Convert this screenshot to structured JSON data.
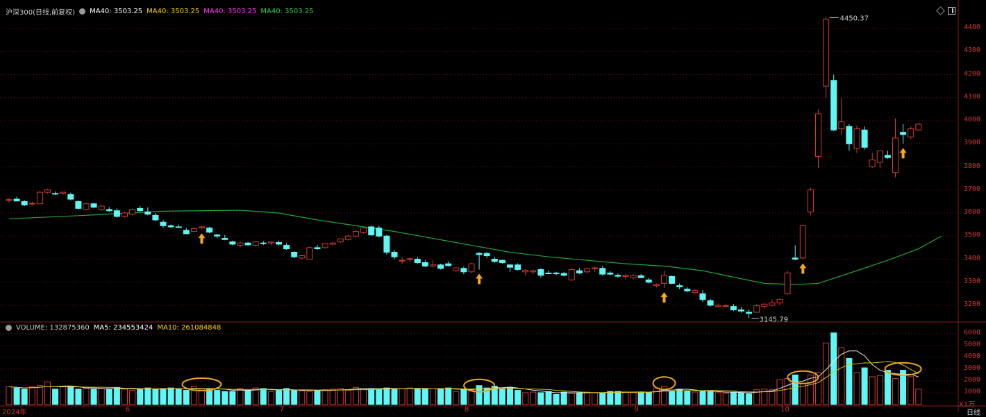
{
  "header": {
    "title": "沪深300(日线,前复权)",
    "ma_items": [
      {
        "label": "MA40: 3503.25",
        "color": "#ffffff"
      },
      {
        "label": "MA40: 3503.25",
        "color": "#ffd400"
      },
      {
        "label": "MA40: 3503.25",
        "color": "#ff3cff"
      },
      {
        "label": "MA40: 3503.25",
        "color": "#2ed14a"
      }
    ]
  },
  "volume_header": {
    "volume": "VOLUME: 132875360",
    "ma5": "MA5: 234553424",
    "ma10": "MA10: 261084848"
  },
  "price_axis": [
    "4400",
    "4300",
    "4200",
    "4100",
    "4000",
    "3900",
    "3800",
    "3700",
    "3600",
    "3500",
    "3400",
    "3300",
    "3200"
  ],
  "volume_axis": [
    "6000",
    "5000",
    "4000",
    "3000",
    "2000",
    "1000"
  ],
  "volume_unit": "X1万",
  "period": "日线",
  "x_axis": [
    {
      "label": "2024年",
      "index": 0
    },
    {
      "label": "6",
      "index": 16
    },
    {
      "label": "7",
      "index": 36
    },
    {
      "label": "8",
      "index": 60
    },
    {
      "label": "9",
      "index": 82
    },
    {
      "label": "10",
      "index": 101
    }
  ],
  "annotations": {
    "high": "4450.37",
    "low": "3145.79"
  },
  "colors": {
    "up": "#d23c32",
    "down": "#5ff6f6",
    "ma40": "#23a833",
    "grid": "#6b1515",
    "arrow": "#f5a81a",
    "circle": "#e8a722"
  },
  "chart_data": {
    "type": "candlestick",
    "candles": [
      [
        3655,
        3665,
        3645,
        3658
      ],
      [
        3660,
        3670,
        3650,
        3652
      ],
      [
        3650,
        3655,
        3630,
        3635
      ],
      [
        3640,
        3648,
        3632,
        3642
      ],
      [
        3640,
        3695,
        3638,
        3690
      ],
      [
        3690,
        3705,
        3685,
        3700
      ],
      [
        3685,
        3693,
        3678,
        3682
      ],
      [
        3685,
        3692,
        3678,
        3690
      ],
      [
        3680,
        3688,
        3655,
        3660
      ],
      [
        3650,
        3655,
        3615,
        3620
      ],
      [
        3615,
        3645,
        3612,
        3640
      ],
      [
        3640,
        3645,
        3620,
        3625
      ],
      [
        3615,
        3635,
        3610,
        3630
      ],
      [
        3615,
        3625,
        3605,
        3610
      ],
      [
        3610,
        3620,
        3580,
        3585
      ],
      [
        3585,
        3605,
        3580,
        3600
      ],
      [
        3595,
        3620,
        3590,
        3615
      ],
      [
        3620,
        3630,
        3605,
        3610
      ],
      [
        3605,
        3625,
        3590,
        3595
      ],
      [
        3590,
        3600,
        3565,
        3570
      ],
      [
        3560,
        3570,
        3535,
        3545
      ],
      [
        3545,
        3550,
        3535,
        3540
      ],
      [
        3540,
        3550,
        3535,
        3538
      ],
      [
        3525,
        3535,
        3508,
        3510
      ],
      [
        3520,
        3535,
        3518,
        3532
      ],
      [
        3535,
        3545,
        3530,
        3540
      ],
      [
        3535,
        3540,
        3512,
        3517
      ],
      [
        3505,
        3510,
        3490,
        3500
      ],
      [
        3490,
        3505,
        3482,
        3485
      ],
      [
        3475,
        3480,
        3460,
        3465
      ],
      [
        3460,
        3475,
        3452,
        3470
      ],
      [
        3470,
        3475,
        3458,
        3462
      ],
      [
        3460,
        3480,
        3455,
        3475
      ],
      [
        3470,
        3478,
        3462,
        3467
      ],
      [
        3470,
        3478,
        3460,
        3474
      ],
      [
        3472,
        3480,
        3460,
        3465
      ],
      [
        3460,
        3470,
        3440,
        3445
      ],
      [
        3430,
        3435,
        3405,
        3410
      ],
      [
        3405,
        3418,
        3398,
        3415
      ],
      [
        3400,
        3455,
        3398,
        3450
      ],
      [
        3450,
        3462,
        3440,
        3445
      ],
      [
        3450,
        3470,
        3446,
        3468
      ],
      [
        3465,
        3475,
        3460,
        3470
      ],
      [
        3475,
        3490,
        3470,
        3488
      ],
      [
        3485,
        3505,
        3480,
        3500
      ],
      [
        3500,
        3525,
        3495,
        3520
      ],
      [
        3515,
        3540,
        3510,
        3535
      ],
      [
        3540,
        3545,
        3500,
        3505
      ],
      [
        3535,
        3545,
        3495,
        3500
      ],
      [
        3500,
        3505,
        3420,
        3430
      ],
      [
        3430,
        3440,
        3400,
        3410
      ],
      [
        3395,
        3408,
        3380,
        3395
      ],
      [
        3400,
        3408,
        3388,
        3402
      ],
      [
        3400,
        3410,
        3380,
        3385
      ],
      [
        3385,
        3395,
        3365,
        3370
      ],
      [
        3370,
        3395,
        3365,
        3375
      ],
      [
        3375,
        3380,
        3355,
        3360
      ],
      [
        3380,
        3390,
        3368,
        3372
      ],
      [
        3350,
        3365,
        3345,
        3362
      ],
      [
        3360,
        3368,
        3335,
        3345
      ],
      [
        3345,
        3385,
        3340,
        3380
      ],
      [
        3425,
        3430,
        3355,
        3420
      ],
      [
        3425,
        3430,
        3405,
        3415
      ],
      [
        3400,
        3410,
        3385,
        3390
      ],
      [
        3395,
        3398,
        3380,
        3385
      ],
      [
        3375,
        3380,
        3345,
        3365
      ],
      [
        3375,
        3382,
        3350,
        3355
      ],
      [
        3345,
        3358,
        3330,
        3352
      ],
      [
        3345,
        3355,
        3335,
        3350
      ],
      [
        3355,
        3360,
        3320,
        3330
      ],
      [
        3340,
        3350,
        3335,
        3338
      ],
      [
        3340,
        3345,
        3330,
        3338
      ],
      [
        3338,
        3345,
        3325,
        3330
      ],
      [
        3310,
        3360,
        3305,
        3355
      ],
      [
        3350,
        3362,
        3335,
        3340
      ],
      [
        3345,
        3362,
        3338,
        3358
      ],
      [
        3360,
        3368,
        3345,
        3362
      ],
      [
        3360,
        3370,
        3330,
        3335
      ],
      [
        3340,
        3348,
        3330,
        3335
      ],
      [
        3330,
        3338,
        3320,
        3326
      ],
      [
        3325,
        3335,
        3310,
        3330
      ],
      [
        3320,
        3335,
        3315,
        3330
      ],
      [
        3328,
        3335,
        3318,
        3320
      ],
      [
        3310,
        3318,
        3295,
        3300
      ],
      [
        3285,
        3295,
        3278,
        3290
      ],
      [
        3295,
        3350,
        3275,
        3330
      ],
      [
        3325,
        3330,
        3290,
        3295
      ],
      [
        3285,
        3295,
        3270,
        3280
      ],
      [
        3270,
        3278,
        3258,
        3262
      ],
      [
        3255,
        3270,
        3252,
        3265
      ],
      [
        3250,
        3265,
        3215,
        3225
      ],
      [
        3220,
        3228,
        3195,
        3200
      ],
      [
        3195,
        3208,
        3190,
        3200
      ],
      [
        3195,
        3205,
        3188,
        3198
      ],
      [
        3195,
        3205,
        3175,
        3180
      ],
      [
        3180,
        3192,
        3168,
        3175
      ],
      [
        3170,
        3182,
        3145,
        3165
      ],
      [
        3170,
        3205,
        3168,
        3198
      ],
      [
        3195,
        3210,
        3185,
        3205
      ],
      [
        3200,
        3225,
        3195,
        3210
      ],
      [
        3210,
        3230,
        3200,
        3225
      ],
      [
        3250,
        3350,
        3245,
        3340
      ],
      [
        3405,
        3460,
        3395,
        3400
      ],
      [
        3405,
        3550,
        3400,
        3545
      ],
      [
        3605,
        3710,
        3590,
        3700
      ],
      [
        3845,
        4050,
        3795,
        4030
      ],
      [
        4150,
        4450,
        4100,
        4440
      ],
      [
        4175,
        4200,
        3955,
        3960
      ],
      [
        3965,
        4100,
        3940,
        3995
      ],
      [
        3975,
        3985,
        3870,
        3900
      ],
      [
        3880,
        3980,
        3860,
        3965
      ],
      [
        3960,
        3975,
        3875,
        3885
      ],
      [
        3800,
        3860,
        3795,
        3830
      ],
      [
        3820,
        3870,
        3795,
        3870
      ],
      [
        3850,
        3870,
        3835,
        3840
      ],
      [
        3775,
        4010,
        3755,
        3925
      ],
      [
        3950,
        3985,
        3900,
        3940
      ],
      [
        3930,
        3975,
        3920,
        3965
      ],
      [
        3960,
        3990,
        3955,
        3985
      ]
    ],
    "ma40": [
      [
        0,
        3575
      ],
      [
        10,
        3590
      ],
      [
        20,
        3608
      ],
      [
        30,
        3612
      ],
      [
        35,
        3600
      ],
      [
        40,
        3570
      ],
      [
        50,
        3520
      ],
      [
        55,
        3490
      ],
      [
        60,
        3460
      ],
      [
        65,
        3430
      ],
      [
        70,
        3410
      ],
      [
        75,
        3395
      ],
      [
        80,
        3380
      ],
      [
        85,
        3370
      ],
      [
        90,
        3350
      ],
      [
        95,
        3315
      ],
      [
        98,
        3295
      ],
      [
        102,
        3290
      ],
      [
        105,
        3295
      ],
      [
        110,
        3350
      ],
      [
        114,
        3395
      ],
      [
        118,
        3445
      ],
      [
        121,
        3500
      ]
    ],
    "volume": [
      1500,
      1400,
      1300,
      1500,
      1600,
      1900,
      1300,
      1500,
      1550,
      1300,
      1350,
      1300,
      1350,
      1300,
      1450,
      1300,
      1200,
      1300,
      1400,
      1300,
      1350,
      1400,
      1300,
      1200,
      1550,
      1300,
      1350,
      1200,
      1100,
      1100,
      1350,
      1200,
      1400,
      1350,
      1100,
      1200,
      1350,
      1200,
      1150,
      1100,
      1200,
      1250,
      1300,
      1350,
      1200,
      1450,
      1350,
      1350,
      1300,
      1400,
      1350,
      1350,
      1400,
      1300,
      1350,
      1350,
      1300,
      1400,
      1100,
      1300,
      1200,
      1600,
      1400,
      1550,
      1350,
      1450,
      1200,
      1000,
      1050,
      1000,
      1100,
      850,
      1050,
      950,
      1000,
      1050,
      1000,
      1000,
      1100,
      1100,
      1050,
      1000,
      1050,
      1000,
      1400,
      1550,
      1100,
      1300,
      1150,
      1050,
      1150,
      1100,
      1000,
      950,
      1050,
      1000,
      900,
      1250,
      1300,
      1250,
      2100,
      2200,
      2500,
      1800,
      2500,
      2700,
      5200,
      6050,
      4800,
      3900,
      2700,
      3100,
      2350,
      2450,
      2900,
      2200,
      2900,
      2350,
      1300
    ]
  }
}
